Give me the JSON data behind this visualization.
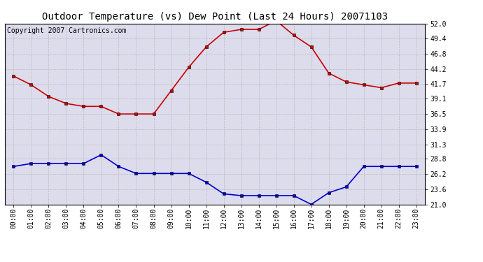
{
  "title": "Outdoor Temperature (vs) Dew Point (Last 24 Hours) 20071103",
  "copyright_text": "Copyright 2007 Cartronics.com",
  "hours": [
    "00:00",
    "01:00",
    "02:00",
    "03:00",
    "04:00",
    "05:00",
    "06:00",
    "07:00",
    "08:00",
    "09:00",
    "10:00",
    "11:00",
    "12:00",
    "13:00",
    "14:00",
    "15:00",
    "16:00",
    "17:00",
    "18:00",
    "19:00",
    "20:00",
    "21:00",
    "22:00",
    "23:00"
  ],
  "temp": [
    43.0,
    41.5,
    39.5,
    38.3,
    37.8,
    37.8,
    36.5,
    36.5,
    36.5,
    40.5,
    44.5,
    48.0,
    50.5,
    51.0,
    51.0,
    52.5,
    50.0,
    48.0,
    43.5,
    42.0,
    41.5,
    41.0,
    41.8,
    41.8
  ],
  "dew": [
    27.5,
    28.0,
    28.0,
    28.0,
    28.0,
    29.5,
    27.5,
    26.3,
    26.3,
    26.3,
    26.3,
    24.8,
    22.8,
    22.5,
    22.5,
    22.5,
    22.5,
    21.0,
    23.0,
    24.0,
    27.5,
    27.5,
    27.5,
    27.5
  ],
  "temp_color": "#cc0000",
  "dew_color": "#0000cc",
  "bg_color": "#ffffff",
  "plot_bg_color": "#dcdcec",
  "grid_color": "#bbbbbb",
  "yticks": [
    21.0,
    23.6,
    26.2,
    28.8,
    31.3,
    33.9,
    36.5,
    39.1,
    41.7,
    44.2,
    46.8,
    49.4,
    52.0
  ],
  "ymin": 21.0,
  "ymax": 52.0,
  "title_fontsize": 10,
  "copyright_fontsize": 7,
  "axis_fontsize": 7,
  "marker": "s",
  "marker_size": 3,
  "linewidth": 1.2
}
